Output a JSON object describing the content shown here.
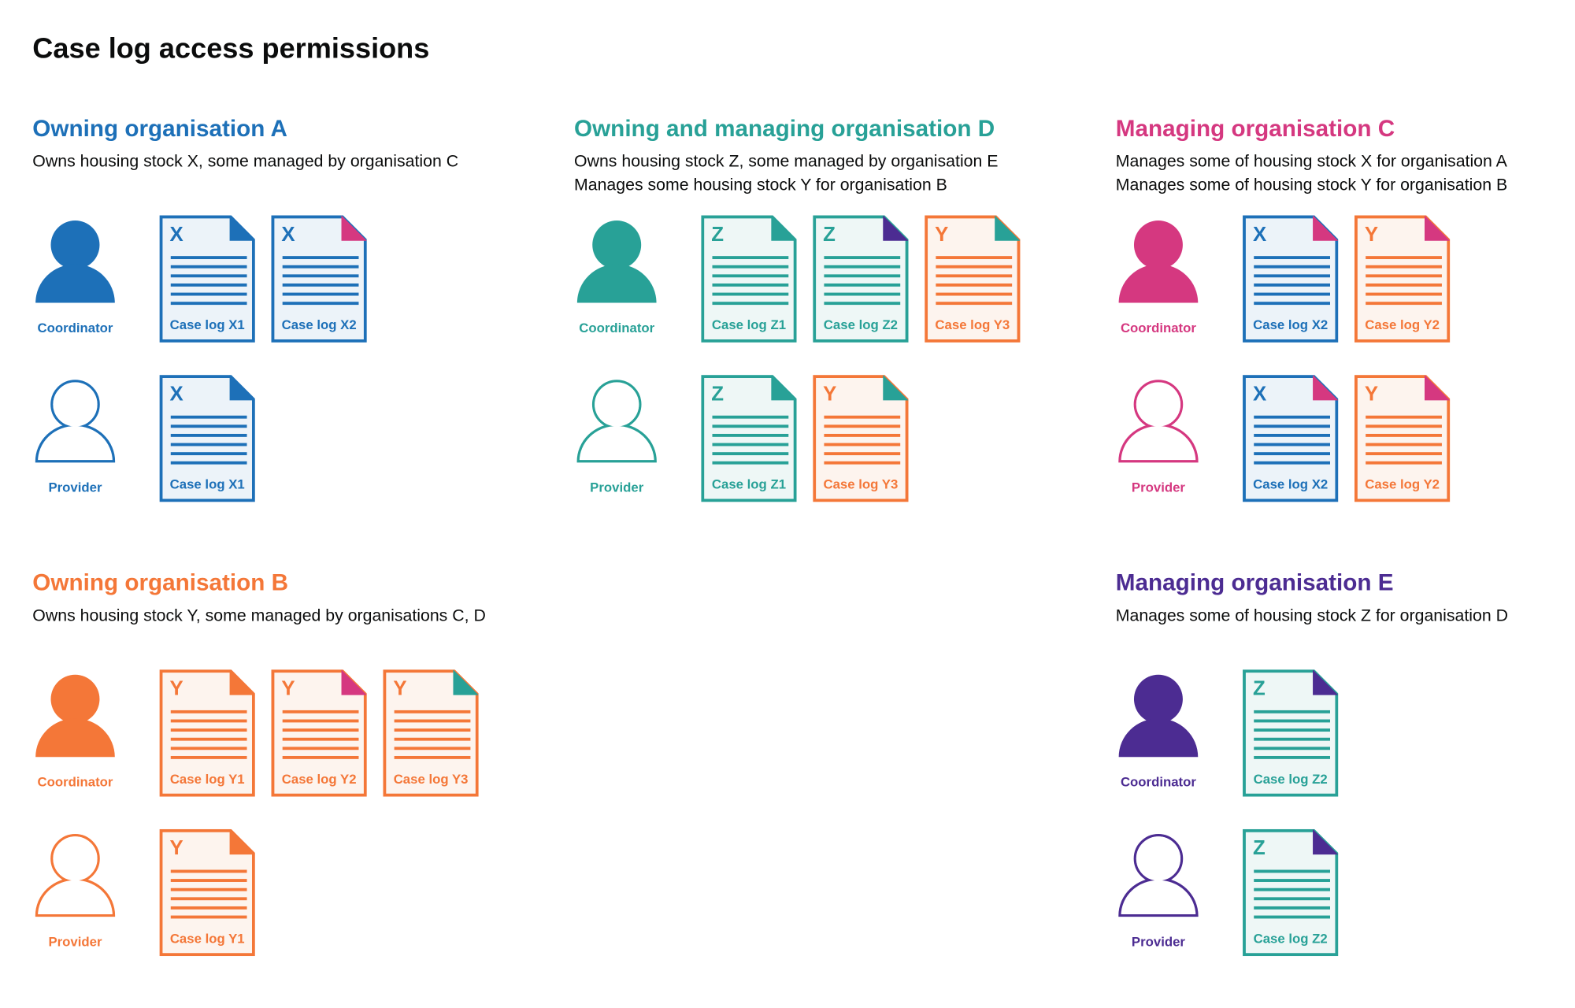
{
  "title": "Case log access permissions",
  "colors": {
    "blue": "#1d70b8",
    "teal": "#28a197",
    "pink": "#d53880",
    "orange": "#f47738",
    "purple": "#4c2c92"
  },
  "sections": [
    {
      "heading": "Owning organisation A",
      "color": "blue",
      "description": [
        "Owns housing stock X, some managed by organisation C"
      ],
      "roles": [
        {
          "label": "Coordinator",
          "icon": "person-filled-icon",
          "docs": [
            {
              "letter": "X",
              "label": "Case log X1",
              "color": "blue",
              "corner": "blue"
            },
            {
              "letter": "X",
              "label": "Case log X2",
              "color": "blue",
              "corner": "pink"
            }
          ]
        },
        {
          "label": "Provider",
          "icon": "person-outline-icon",
          "docs": [
            {
              "letter": "X",
              "label": "Case log X1",
              "color": "blue",
              "corner": "blue"
            }
          ]
        }
      ]
    },
    {
      "heading": "Owning and managing organisation D",
      "color": "teal",
      "description": [
        "Owns housing stock Z, some managed by organisation E",
        "Manages some housing stock Y for organisation B"
      ],
      "roles": [
        {
          "label": "Coordinator",
          "icon": "person-filled-icon",
          "docs": [
            {
              "letter": "Z",
              "label": "Case log Z1",
              "color": "teal",
              "corner": "teal"
            },
            {
              "letter": "Z",
              "label": "Case log Z2",
              "color": "teal",
              "corner": "purple"
            },
            {
              "letter": "Y",
              "label": "Case log Y3",
              "color": "orange",
              "corner": "teal"
            }
          ]
        },
        {
          "label": "Provider",
          "icon": "person-outline-icon",
          "docs": [
            {
              "letter": "Z",
              "label": "Case log Z1",
              "color": "teal",
              "corner": "teal"
            },
            {
              "letter": "Y",
              "label": "Case log Y3",
              "color": "orange",
              "corner": "teal"
            }
          ]
        }
      ]
    },
    {
      "heading": "Managing organisation C",
      "color": "pink",
      "description": [
        "Manages some of housing stock X for organisation A",
        "Manages some of housing stock Y for organisation B"
      ],
      "roles": [
        {
          "label": "Coordinator",
          "icon": "person-filled-icon",
          "docs": [
            {
              "letter": "X",
              "label": "Case log X2",
              "color": "blue",
              "corner": "pink"
            },
            {
              "letter": "Y",
              "label": "Case log Y2",
              "color": "orange",
              "corner": "pink"
            }
          ]
        },
        {
          "label": "Provider",
          "icon": "person-outline-icon",
          "docs": [
            {
              "letter": "X",
              "label": "Case log X2",
              "color": "blue",
              "corner": "pink"
            },
            {
              "letter": "Y",
              "label": "Case log Y2",
              "color": "orange",
              "corner": "pink"
            }
          ]
        }
      ]
    },
    {
      "heading": "Owning organisation B",
      "color": "orange",
      "description": [
        "Owns housing stock Y, some managed by organisations C, D"
      ],
      "roles": [
        {
          "label": "Coordinator",
          "icon": "person-filled-icon",
          "docs": [
            {
              "letter": "Y",
              "label": "Case log Y1",
              "color": "orange",
              "corner": "orange"
            },
            {
              "letter": "Y",
              "label": "Case log Y2",
              "color": "orange",
              "corner": "pink"
            },
            {
              "letter": "Y",
              "label": "Case log Y3",
              "color": "orange",
              "corner": "teal"
            }
          ]
        },
        {
          "label": "Provider",
          "icon": "person-outline-icon",
          "docs": [
            {
              "letter": "Y",
              "label": "Case log Y1",
              "color": "orange",
              "corner": "orange"
            }
          ]
        }
      ]
    },
    {
      "heading": "Managing organisation E",
      "color": "purple",
      "description": [
        "Manages some of housing stock Z for organisation D"
      ],
      "roles": [
        {
          "label": "Coordinator",
          "icon": "person-filled-icon",
          "docs": [
            {
              "letter": "Z",
              "label": "Case log Z2",
              "color": "teal",
              "corner": "purple"
            }
          ]
        },
        {
          "label": "Provider",
          "icon": "person-outline-icon",
          "docs": [
            {
              "letter": "Z",
              "label": "Case log Z2",
              "color": "teal",
              "corner": "purple"
            }
          ]
        }
      ]
    }
  ]
}
